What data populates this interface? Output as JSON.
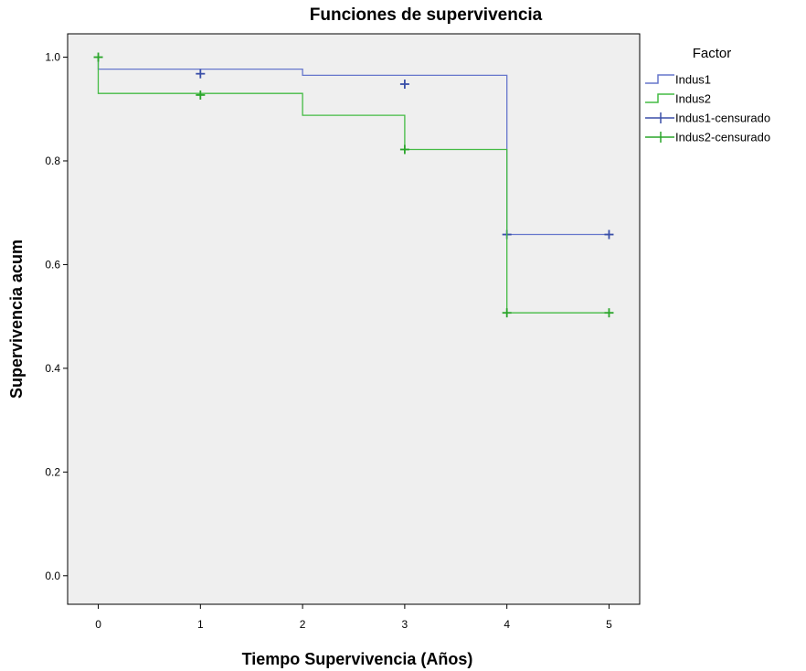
{
  "chart_data": {
    "type": "line",
    "subtype": "kaplan-meier-step",
    "title": "Funciones de supervivencia",
    "xlabel": "Tiempo Supervivencia (Años)",
    "ylabel": "Supervivencia acum",
    "xlim": [
      -0.3,
      5.3
    ],
    "ylim": [
      -0.055,
      1.045
    ],
    "x_ticks": [
      0,
      1,
      2,
      3,
      4,
      5
    ],
    "y_ticks": [
      0.0,
      0.2,
      0.4,
      0.6,
      0.8,
      1.0
    ],
    "x_tick_labels": [
      "0",
      "1",
      "2",
      "3",
      "4",
      "5"
    ],
    "y_tick_labels": [
      "0.0",
      "0.2",
      "0.4",
      "0.6",
      "0.8",
      "1.0"
    ],
    "legend_position": "right",
    "legend_title": "Factor",
    "grid": false,
    "plot_background": "#efefef",
    "series": [
      {
        "name": "Indus1",
        "color": "#6677cc",
        "censor_color": "#3a4fa8",
        "steps": [
          [
            0,
            1.0
          ],
          [
            0,
            0.977
          ],
          [
            2,
            0.977
          ],
          [
            2,
            0.965
          ],
          [
            4,
            0.965
          ],
          [
            4,
            0.658
          ],
          [
            5,
            0.658
          ]
        ],
        "censored": [
          [
            1,
            0.968
          ],
          [
            3,
            0.948
          ],
          [
            4,
            0.658
          ],
          [
            5,
            0.658
          ]
        ]
      },
      {
        "name": "Indus2",
        "color": "#44bb44",
        "censor_color": "#2aa52a",
        "steps": [
          [
            0,
            1.0
          ],
          [
            0,
            0.93
          ],
          [
            2,
            0.93
          ],
          [
            2,
            0.888
          ],
          [
            3,
            0.888
          ],
          [
            3,
            0.822
          ],
          [
            4,
            0.822
          ],
          [
            4,
            0.507
          ],
          [
            5,
            0.507
          ]
        ],
        "censored": [
          [
            0,
            1.0
          ],
          [
            1,
            0.927
          ],
          [
            3,
            0.822
          ],
          [
            4,
            0.507
          ],
          [
            5,
            0.507
          ]
        ]
      }
    ],
    "legend": [
      {
        "label": "Indus1",
        "kind": "step",
        "color": "#6677cc"
      },
      {
        "label": "Indus2",
        "kind": "step",
        "color": "#44bb44"
      },
      {
        "label": "Indus1-censurado",
        "kind": "censor",
        "color": "#3a4fa8"
      },
      {
        "label": "Indus2-censurado",
        "kind": "censor",
        "color": "#2aa52a"
      }
    ]
  }
}
